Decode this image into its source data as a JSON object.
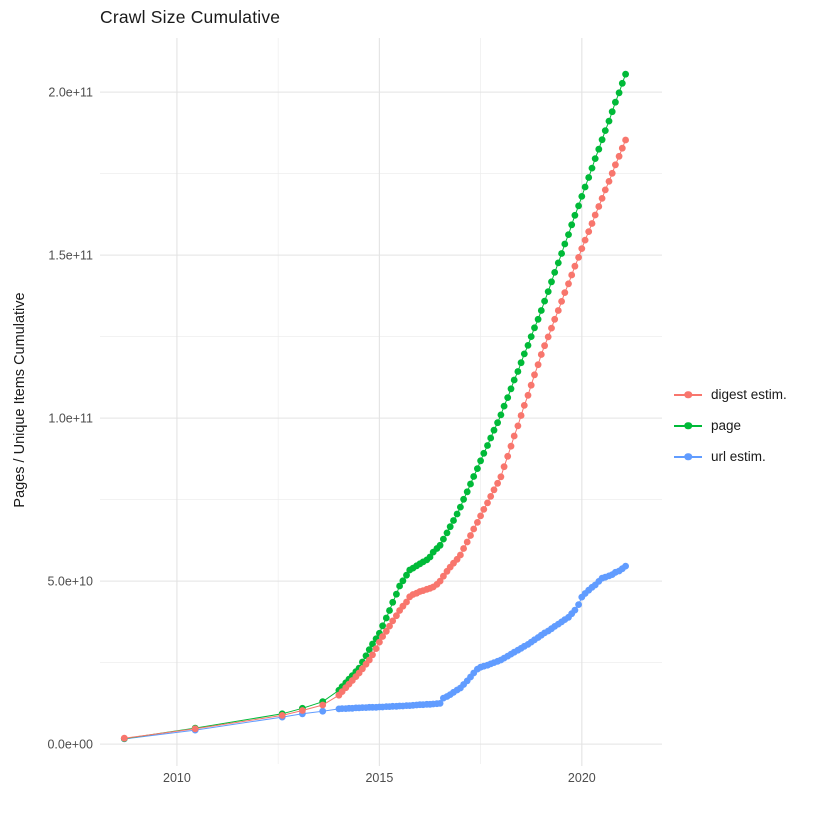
{
  "title": "Crawl Size Cumulative",
  "y_axis": {
    "label": "Pages / Unique Items Cumulative",
    "tick_labels": [
      "0.0e+00",
      "5.0e+10",
      "1.0e+11",
      "1.5e+11",
      "2.0e+11"
    ],
    "tick_values_billions": [
      0,
      50,
      100,
      150,
      200
    ],
    "minor_tick_values_billions": [
      25,
      75,
      125,
      175
    ]
  },
  "x_axis": {
    "tick_labels": [
      "2010",
      "2015",
      "2020"
    ],
    "tick_values": [
      2010,
      2015,
      2020
    ],
    "minor_tick_values": [
      2012.5,
      2017.5
    ]
  },
  "legend": {
    "items": [
      {
        "label": "digest estim.",
        "color": "#F8766D"
      },
      {
        "label": "page",
        "color": "#00BA38"
      },
      {
        "label": "url estim.",
        "color": "#619CFF"
      }
    ]
  },
  "chart_data": {
    "type": "line",
    "title": "Crawl Size Cumulative",
    "xlabel": "",
    "ylabel": "Pages / Unique Items Cumulative",
    "unit": "point values in billions (1e9) of pages / unique items, cumulative",
    "xlim": [
      2008.1,
      2021.98
    ],
    "ylim_billions": [
      -6.1,
      216.6
    ],
    "grid": true,
    "legend_position": "right",
    "marker_radius": 3.4,
    "series": [
      {
        "name": "url estim.",
        "color": "#619CFF",
        "points": [
          [
            2008.7,
            1.6
          ],
          [
            2010.45,
            4.3
          ],
          [
            2012.6,
            8.3
          ],
          [
            2013.1,
            9.3
          ],
          [
            2013.6,
            10.1
          ],
          [
            2014,
            10.8
          ],
          [
            2014.08,
            10.9
          ],
          [
            2014.17,
            10.9
          ],
          [
            2014.25,
            11
          ],
          [
            2014.33,
            11
          ],
          [
            2014.42,
            11.1
          ],
          [
            2014.5,
            11.1
          ],
          [
            2014.58,
            11.2
          ],
          [
            2014.67,
            11.2
          ],
          [
            2014.75,
            11.3
          ],
          [
            2014.83,
            11.3
          ],
          [
            2014.92,
            11.3
          ],
          [
            2015,
            11.4
          ],
          [
            2015.08,
            11.4
          ],
          [
            2015.17,
            11.5
          ],
          [
            2015.25,
            11.5
          ],
          [
            2015.33,
            11.6
          ],
          [
            2015.42,
            11.6
          ],
          [
            2015.5,
            11.7
          ],
          [
            2015.58,
            11.7
          ],
          [
            2015.67,
            11.8
          ],
          [
            2015.75,
            11.8
          ],
          [
            2015.83,
            11.9
          ],
          [
            2015.92,
            12
          ],
          [
            2016,
            12.1
          ],
          [
            2016.08,
            12.1
          ],
          [
            2016.17,
            12.2
          ],
          [
            2016.25,
            12.2
          ],
          [
            2016.33,
            12.3
          ],
          [
            2016.42,
            12.4
          ],
          [
            2016.5,
            12.5
          ],
          [
            2016.58,
            14.1
          ],
          [
            2016.67,
            14.6
          ],
          [
            2016.75,
            15.2
          ],
          [
            2016.83,
            15.9
          ],
          [
            2016.92,
            16.6
          ],
          [
            2017,
            17.2
          ],
          [
            2017.08,
            18.3
          ],
          [
            2017.17,
            19.4
          ],
          [
            2017.25,
            20.6
          ],
          [
            2017.33,
            21.8
          ],
          [
            2017.42,
            23
          ],
          [
            2017.5,
            23.6
          ],
          [
            2017.58,
            23.9
          ],
          [
            2017.67,
            24.2
          ],
          [
            2017.75,
            24.6
          ],
          [
            2017.83,
            25
          ],
          [
            2017.92,
            25.4
          ],
          [
            2018,
            25.8
          ],
          [
            2018.08,
            26.4
          ],
          [
            2018.17,
            27
          ],
          [
            2018.25,
            27.6
          ],
          [
            2018.33,
            28.2
          ],
          [
            2018.42,
            28.8
          ],
          [
            2018.5,
            29.4
          ],
          [
            2018.58,
            30
          ],
          [
            2018.67,
            30.6
          ],
          [
            2018.75,
            31.3
          ],
          [
            2018.83,
            32
          ],
          [
            2018.92,
            32.7
          ],
          [
            2019,
            33.4
          ],
          [
            2019.08,
            34.1
          ],
          [
            2019.17,
            34.7
          ],
          [
            2019.25,
            35.4
          ],
          [
            2019.33,
            36.1
          ],
          [
            2019.42,
            36.8
          ],
          [
            2019.5,
            37.5
          ],
          [
            2019.58,
            38.2
          ],
          [
            2019.67,
            38.9
          ],
          [
            2019.75,
            40
          ],
          [
            2019.83,
            41.1
          ],
          [
            2019.92,
            42.8
          ],
          [
            2020,
            45.1
          ],
          [
            2020.08,
            46.2
          ],
          [
            2020.17,
            47.2
          ],
          [
            2020.25,
            48.1
          ],
          [
            2020.33,
            48.8
          ],
          [
            2020.42,
            49.9
          ],
          [
            2020.5,
            50.9
          ],
          [
            2020.58,
            51.2
          ],
          [
            2020.67,
            51.6
          ],
          [
            2020.75,
            52
          ],
          [
            2020.83,
            52.7
          ],
          [
            2020.92,
            53.1
          ],
          [
            2021,
            53.8
          ],
          [
            2021.08,
            54.6
          ]
        ]
      },
      {
        "name": "page",
        "color": "#00BA38",
        "points": [
          [
            2008.7,
            1.7
          ],
          [
            2010.45,
            4.9
          ],
          [
            2012.6,
            9.3
          ],
          [
            2013.1,
            11
          ],
          [
            2013.6,
            13
          ],
          [
            2014,
            16.5
          ],
          [
            2014.08,
            17.6
          ],
          [
            2014.17,
            18.8
          ],
          [
            2014.25,
            19.9
          ],
          [
            2014.33,
            21
          ],
          [
            2014.42,
            22.2
          ],
          [
            2014.5,
            23.3
          ],
          [
            2014.58,
            25.2
          ],
          [
            2014.67,
            27.1
          ],
          [
            2014.75,
            29
          ],
          [
            2014.83,
            30.7
          ],
          [
            2014.92,
            32.3
          ],
          [
            2015,
            34
          ],
          [
            2015.08,
            36.3
          ],
          [
            2015.17,
            38.7
          ],
          [
            2015.25,
            41
          ],
          [
            2015.33,
            43.5
          ],
          [
            2015.42,
            46
          ],
          [
            2015.5,
            48.5
          ],
          [
            2015.58,
            50.1
          ],
          [
            2015.67,
            51.8
          ],
          [
            2015.75,
            53.4
          ],
          [
            2015.83,
            54
          ],
          [
            2015.92,
            54.7
          ],
          [
            2016,
            55.3
          ],
          [
            2016.08,
            55.9
          ],
          [
            2016.17,
            56.5
          ],
          [
            2016.25,
            57.4
          ],
          [
            2016.33,
            58.9
          ],
          [
            2016.42,
            60
          ],
          [
            2016.5,
            61
          ],
          [
            2016.58,
            62.9
          ],
          [
            2016.67,
            64.8
          ],
          [
            2016.75,
            66.7
          ],
          [
            2016.83,
            68.6
          ],
          [
            2016.92,
            70.6
          ],
          [
            2017,
            72.7
          ],
          [
            2017.08,
            75.1
          ],
          [
            2017.17,
            77.4
          ],
          [
            2017.25,
            79.8
          ],
          [
            2017.33,
            82.1
          ],
          [
            2017.42,
            84.5
          ],
          [
            2017.5,
            86.9
          ],
          [
            2017.58,
            89.2
          ],
          [
            2017.67,
            91.6
          ],
          [
            2017.75,
            93.9
          ],
          [
            2017.83,
            96.3
          ],
          [
            2017.92,
            98.6
          ],
          [
            2018,
            101
          ],
          [
            2018.08,
            103.7
          ],
          [
            2018.17,
            106.3
          ],
          [
            2018.25,
            109
          ],
          [
            2018.33,
            111.7
          ],
          [
            2018.42,
            114.3
          ],
          [
            2018.5,
            117
          ],
          [
            2018.58,
            119.7
          ],
          [
            2018.67,
            122.3
          ],
          [
            2018.75,
            125
          ],
          [
            2018.83,
            127.7
          ],
          [
            2018.92,
            130.3
          ],
          [
            2019,
            133
          ],
          [
            2019.08,
            135.9
          ],
          [
            2019.17,
            138.8
          ],
          [
            2019.25,
            141.8
          ],
          [
            2019.33,
            144.7
          ],
          [
            2019.42,
            147.6
          ],
          [
            2019.5,
            150.5
          ],
          [
            2019.58,
            153.4
          ],
          [
            2019.67,
            156.3
          ],
          [
            2019.75,
            159.3
          ],
          [
            2019.83,
            162.2
          ],
          [
            2019.92,
            165.1
          ],
          [
            2020,
            168
          ],
          [
            2020.08,
            170.9
          ],
          [
            2020.17,
            173.8
          ],
          [
            2020.25,
            176.7
          ],
          [
            2020.33,
            179.6
          ],
          [
            2020.42,
            182.5
          ],
          [
            2020.5,
            185.4
          ],
          [
            2020.58,
            188.2
          ],
          [
            2020.67,
            191.1
          ],
          [
            2020.75,
            194
          ],
          [
            2020.83,
            196.9
          ],
          [
            2020.92,
            199.8
          ],
          [
            2021,
            202.7
          ],
          [
            2021.08,
            205.5
          ]
        ]
      },
      {
        "name": "digest estim.",
        "color": "#F8766D",
        "points": [
          [
            2008.7,
            1.8
          ],
          [
            2010.45,
            4.7
          ],
          [
            2012.6,
            8.8
          ],
          [
            2013.1,
            10.3
          ],
          [
            2013.6,
            12
          ],
          [
            2014,
            15
          ],
          [
            2014.08,
            16.1
          ],
          [
            2014.17,
            17.3
          ],
          [
            2014.25,
            18.4
          ],
          [
            2014.33,
            19.5
          ],
          [
            2014.42,
            20.7
          ],
          [
            2014.5,
            21.8
          ],
          [
            2014.58,
            23.1
          ],
          [
            2014.67,
            24.5
          ],
          [
            2014.75,
            25.8
          ],
          [
            2014.83,
            27.4
          ],
          [
            2014.92,
            29.3
          ],
          [
            2015,
            31.3
          ],
          [
            2015.08,
            33
          ],
          [
            2015.17,
            34.6
          ],
          [
            2015.25,
            36.2
          ],
          [
            2015.33,
            37.8
          ],
          [
            2015.42,
            39.4
          ],
          [
            2015.5,
            41
          ],
          [
            2015.58,
            42.3
          ],
          [
            2015.67,
            43.6
          ],
          [
            2015.75,
            45.2
          ],
          [
            2015.83,
            45.9
          ],
          [
            2015.92,
            46.3
          ],
          [
            2016,
            46.8
          ],
          [
            2016.08,
            47.1
          ],
          [
            2016.17,
            47.5
          ],
          [
            2016.25,
            47.8
          ],
          [
            2016.33,
            48.2
          ],
          [
            2016.42,
            49
          ],
          [
            2016.5,
            50
          ],
          [
            2016.58,
            51.5
          ],
          [
            2016.67,
            53
          ],
          [
            2016.75,
            54.3
          ],
          [
            2016.83,
            55.5
          ],
          [
            2016.92,
            56.7
          ],
          [
            2017,
            58
          ],
          [
            2017.08,
            60
          ],
          [
            2017.17,
            62
          ],
          [
            2017.25,
            64
          ],
          [
            2017.33,
            66
          ],
          [
            2017.42,
            68
          ],
          [
            2017.5,
            70
          ],
          [
            2017.58,
            72
          ],
          [
            2017.67,
            74
          ],
          [
            2017.75,
            76
          ],
          [
            2017.83,
            78
          ],
          [
            2017.92,
            80
          ],
          [
            2018,
            82
          ],
          [
            2018.08,
            85.1
          ],
          [
            2018.17,
            88.3
          ],
          [
            2018.25,
            91.4
          ],
          [
            2018.33,
            94.5
          ],
          [
            2018.42,
            97.6
          ],
          [
            2018.5,
            100.8
          ],
          [
            2018.58,
            103.9
          ],
          [
            2018.67,
            107
          ],
          [
            2018.75,
            110.1
          ],
          [
            2018.83,
            113.3
          ],
          [
            2018.92,
            116.4
          ],
          [
            2019,
            119.5
          ],
          [
            2019.08,
            122.2
          ],
          [
            2019.17,
            124.9
          ],
          [
            2019.25,
            127.6
          ],
          [
            2019.33,
            130.3
          ],
          [
            2019.42,
            133
          ],
          [
            2019.5,
            135.8
          ],
          [
            2019.58,
            138.5
          ],
          [
            2019.67,
            141.2
          ],
          [
            2019.75,
            143.9
          ],
          [
            2019.83,
            146.6
          ],
          [
            2019.92,
            149.3
          ],
          [
            2020,
            152
          ],
          [
            2020.08,
            154.6
          ],
          [
            2020.17,
            157.2
          ],
          [
            2020.25,
            159.7
          ],
          [
            2020.33,
            162.3
          ],
          [
            2020.42,
            164.9
          ],
          [
            2020.5,
            167.4
          ],
          [
            2020.58,
            170
          ],
          [
            2020.67,
            172.6
          ],
          [
            2020.75,
            175.1
          ],
          [
            2020.83,
            177.7
          ],
          [
            2020.92,
            180.3
          ],
          [
            2021,
            182.8
          ],
          [
            2021.08,
            185.3
          ]
        ]
      }
    ]
  }
}
